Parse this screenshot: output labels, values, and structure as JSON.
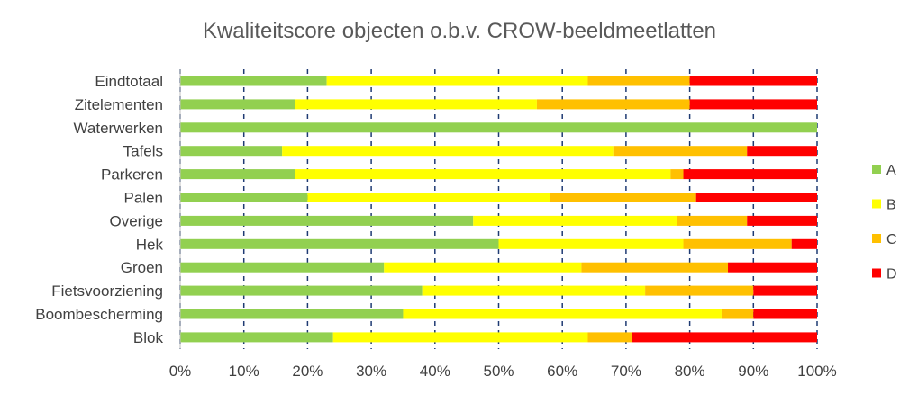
{
  "chart_data": {
    "type": "bar",
    "orientation": "horizontal",
    "stacked": "percent",
    "title": "Kwaliteitscore objecten o.b.v. CROW-beeldmeetlatten",
    "xlabel": "",
    "ylabel": "",
    "xlim": [
      0,
      100
    ],
    "x_ticks": [
      "0%",
      "10%",
      "20%",
      "30%",
      "40%",
      "50%",
      "60%",
      "70%",
      "80%",
      "90%",
      "100%"
    ],
    "grid": "vertical dashed",
    "legend_position": "right",
    "categories": [
      "Eindtotaal",
      "Zitelementen",
      "Waterwerken",
      "Tafels",
      "Parkeren",
      "Palen",
      "Overige",
      "Hek",
      "Groen",
      "Fietsvoorziening",
      "Boombescherming",
      "Blok"
    ],
    "series": [
      {
        "name": "A",
        "color": "#92d050",
        "values": [
          23,
          18,
          100,
          16,
          18,
          20,
          46,
          50,
          32,
          38,
          35,
          24
        ]
      },
      {
        "name": "B",
        "color": "#ffff00",
        "values": [
          41,
          38,
          0,
          52,
          59,
          38,
          32,
          29,
          31,
          35,
          50,
          40
        ]
      },
      {
        "name": "C",
        "color": "#ffc000",
        "values": [
          16,
          24,
          0,
          21,
          2,
          23,
          11,
          17,
          23,
          17,
          5,
          7
        ]
      },
      {
        "name": "D",
        "color": "#ff0000",
        "values": [
          20,
          20,
          0,
          11,
          21,
          19,
          11,
          4,
          14,
          10,
          10,
          29
        ]
      }
    ]
  }
}
